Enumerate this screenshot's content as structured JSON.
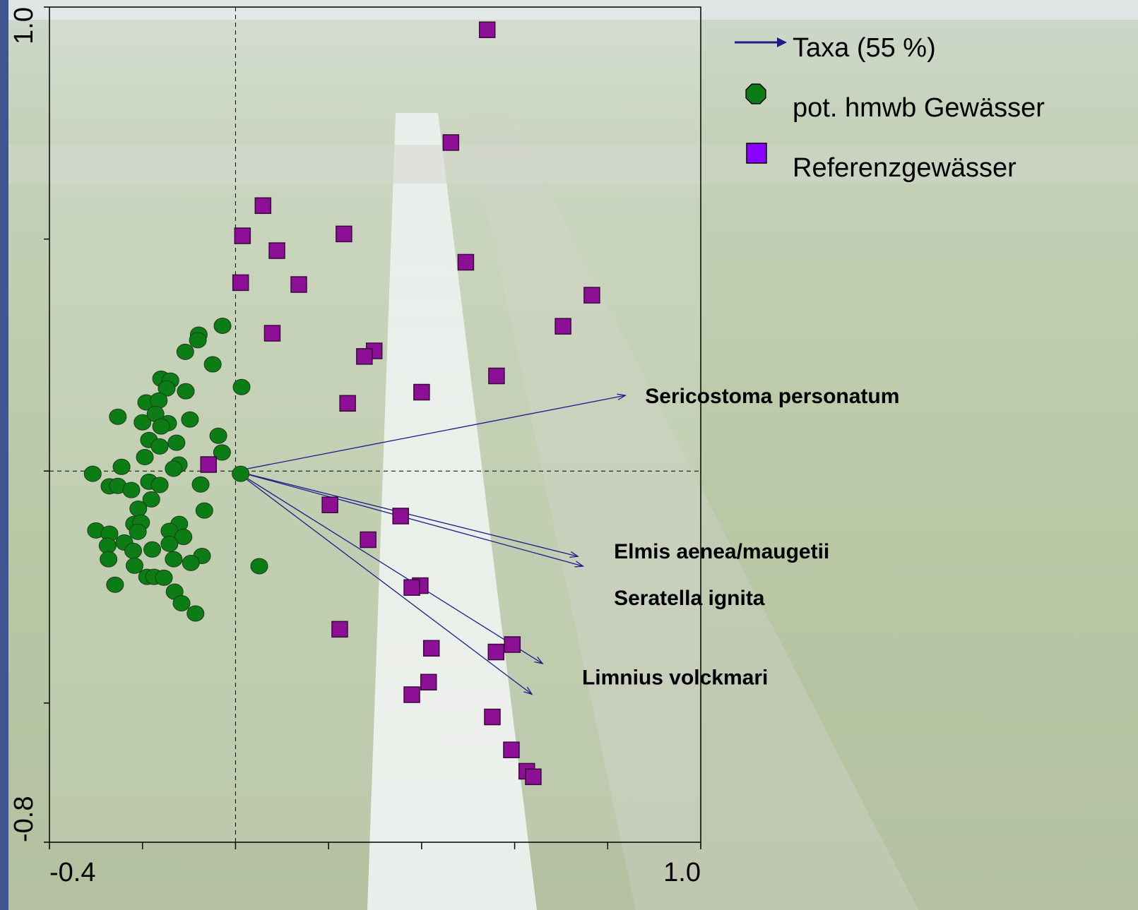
{
  "chart_data": {
    "type": "scatter",
    "xlim": [
      -0.4,
      1.0
    ],
    "ylim": [
      -0.8,
      1.0
    ],
    "xticks": [
      {
        "value": -0.4,
        "label": "-0.4"
      },
      {
        "value": 1.0,
        "label": "1.0"
      }
    ],
    "xminorticks": [
      -0.2,
      0,
      0.2,
      0.4,
      0.6,
      0.8
    ],
    "yticks": [
      {
        "value": -0.8,
        "label": "-0.8"
      },
      {
        "value": 1.0,
        "label": "1.0"
      }
    ],
    "yminorticks": [
      -0.5,
      0,
      0.5
    ],
    "zero_lines": true,
    "arrows": {
      "name": "Taxa (55 %)",
      "color": "#1c1c8a",
      "labels": [
        "Sericostoma personatum",
        "Elmis aenea/maugetii",
        null,
        "Seratella ignita",
        "Limnius volckmari"
      ],
      "x": [
        0.838,
        0.736,
        0.747,
        0.66,
        0.637
      ],
      "y": [
        0.163,
        -0.184,
        -0.205,
        -0.415,
        -0.481
      ]
    },
    "series": [
      {
        "name": "pot. hmwb Gewässer",
        "color": "#0b7d14",
        "marker": "circle",
        "x": [
          -0.028,
          -0.079,
          -0.081,
          -0.108,
          -0.049,
          0.013,
          -0.16,
          -0.14,
          -0.148,
          -0.107,
          -0.253,
          -0.192,
          -0.165,
          -0.2,
          -0.172,
          -0.145,
          -0.098,
          -0.16,
          -0.186,
          -0.163,
          -0.127,
          -0.037,
          -0.195,
          -0.029,
          -0.122,
          -0.133,
          -0.307,
          -0.245,
          0.011,
          -0.271,
          -0.253,
          -0.224,
          -0.186,
          -0.163,
          -0.075,
          -0.181,
          -0.209,
          -0.067,
          -0.3,
          -0.271,
          -0.218,
          -0.203,
          -0.21,
          -0.121,
          -0.142,
          -0.112,
          -0.275,
          -0.239,
          -0.142,
          -0.22,
          -0.179,
          -0.273,
          -0.133,
          -0.072,
          -0.217,
          -0.096,
          0.051,
          -0.259,
          -0.19,
          -0.175,
          -0.154,
          -0.131,
          -0.116,
          -0.086
        ],
        "y": [
          0.313,
          0.294,
          0.282,
          0.257,
          0.23,
          0.181,
          0.199,
          0.195,
          0.178,
          0.172,
          0.117,
          0.148,
          0.152,
          0.105,
          0.123,
          0.103,
          0.111,
          0.096,
          0.067,
          0.053,
          0.061,
          0.076,
          0.03,
          0.04,
          0.014,
          0.005,
          -0.006,
          0.009,
          -0.006,
          -0.033,
          -0.032,
          -0.041,
          -0.023,
          -0.03,
          -0.029,
          -0.061,
          -0.081,
          -0.085,
          -0.128,
          -0.135,
          -0.114,
          -0.111,
          -0.131,
          -0.114,
          -0.129,
          -0.142,
          -0.161,
          -0.154,
          -0.157,
          -0.172,
          -0.169,
          -0.19,
          -0.19,
          -0.183,
          -0.204,
          -0.198,
          -0.205,
          -0.245,
          -0.228,
          -0.228,
          -0.23,
          -0.26,
          -0.285,
          -0.307
        ]
      },
      {
        "name": "Referenzgewässer",
        "color": "#8c0f96",
        "marker": "square",
        "x": [
          0.541,
          0.463,
          0.059,
          0.233,
          0.015,
          0.089,
          0.495,
          0.011,
          0.136,
          0.766,
          0.704,
          0.079,
          0.298,
          0.277,
          0.561,
          0.4,
          0.241,
          -0.058,
          0.203,
          0.355,
          0.285,
          0.397,
          0.379,
          0.224,
          0.421,
          0.595,
          0.56,
          0.415,
          0.379,
          0.552,
          0.593,
          0.626,
          0.64
        ],
        "y": [
          0.951,
          0.708,
          0.572,
          0.511,
          0.507,
          0.475,
          0.45,
          0.406,
          0.402,
          0.379,
          0.312,
          0.297,
          0.259,
          0.247,
          0.205,
          0.17,
          0.146,
          0.014,
          -0.073,
          -0.097,
          -0.148,
          -0.247,
          -0.251,
          -0.341,
          -0.382,
          -0.374,
          -0.39,
          -0.455,
          -0.482,
          -0.53,
          -0.601,
          -0.647,
          -0.659
        ]
      }
    ]
  }
}
